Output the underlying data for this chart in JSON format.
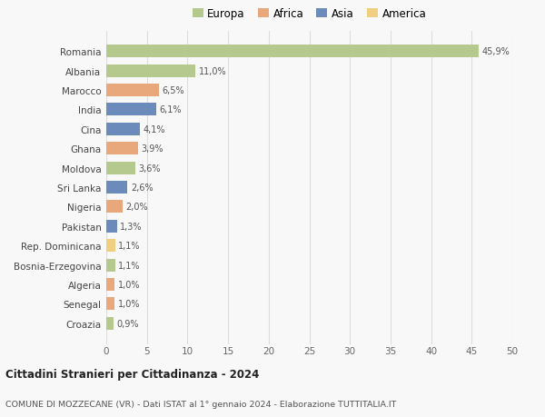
{
  "countries": [
    "Romania",
    "Albania",
    "Marocco",
    "India",
    "Cina",
    "Ghana",
    "Moldova",
    "Sri Lanka",
    "Nigeria",
    "Pakistan",
    "Rep. Dominicana",
    "Bosnia-Erzegovina",
    "Algeria",
    "Senegal",
    "Croazia"
  ],
  "values": [
    45.9,
    11.0,
    6.5,
    6.1,
    4.1,
    3.9,
    3.6,
    2.6,
    2.0,
    1.3,
    1.1,
    1.1,
    1.0,
    1.0,
    0.9
  ],
  "labels": [
    "45,9%",
    "11,0%",
    "6,5%",
    "6,1%",
    "4,1%",
    "3,9%",
    "3,6%",
    "2,6%",
    "2,0%",
    "1,3%",
    "1,1%",
    "1,1%",
    "1,0%",
    "1,0%",
    "0,9%"
  ],
  "colors": [
    "#b5c98e",
    "#b5c98e",
    "#e8a87c",
    "#6b8cba",
    "#6b8cba",
    "#e8a87c",
    "#b5c98e",
    "#6b8cba",
    "#e8a87c",
    "#6b8cba",
    "#f0d080",
    "#b5c98e",
    "#e8a87c",
    "#e8a87c",
    "#b5c98e"
  ],
  "legend_labels": [
    "Europa",
    "Africa",
    "Asia",
    "America"
  ],
  "legend_colors": [
    "#b5c98e",
    "#e8a87c",
    "#6b8cba",
    "#f0d080"
  ],
  "xlim": [
    0,
    50
  ],
  "xticks": [
    0,
    5,
    10,
    15,
    20,
    25,
    30,
    35,
    40,
    45,
    50
  ],
  "title": "Cittadini Stranieri per Cittadinanza - 2024",
  "subtitle": "COMUNE DI MOZZECANE (VR) - Dati ISTAT al 1° gennaio 2024 - Elaborazione TUTTITALIA.IT",
  "bg_color": "#f8f8f8",
  "grid_color": "#dddddd",
  "bar_height": 0.65
}
